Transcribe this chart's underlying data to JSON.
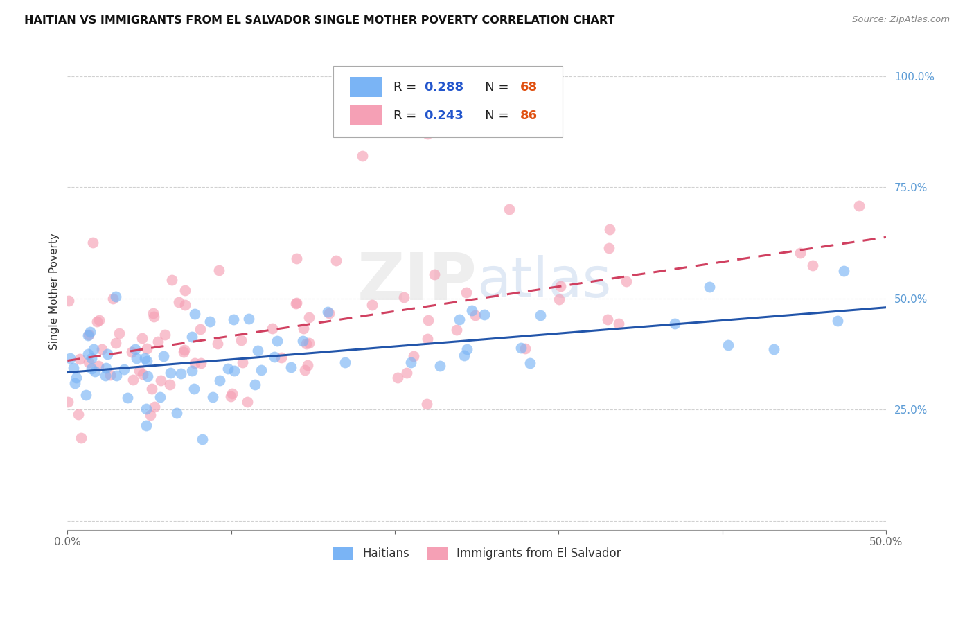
{
  "title": "HAITIAN VS IMMIGRANTS FROM EL SALVADOR SINGLE MOTHER POVERTY CORRELATION CHART",
  "source": "Source: ZipAtlas.com",
  "ylabel": "Single Mother Poverty",
  "xlim": [
    0.0,
    0.5
  ],
  "ylim": [
    -0.02,
    1.05
  ],
  "haitians_color": "#7ab4f5",
  "el_salvador_color": "#f5a0b5",
  "trend_haiti_color": "#2255aa",
  "trend_salvador_color": "#d04060",
  "watermark_zip": "ZIP",
  "watermark_atlas": "atlas",
  "legend_label_1": "Haitians",
  "legend_label_2": "Immigrants from El Salvador",
  "haiti_R": "0.288",
  "haiti_N": "68",
  "salvador_R": "0.243",
  "salvador_N": "86"
}
